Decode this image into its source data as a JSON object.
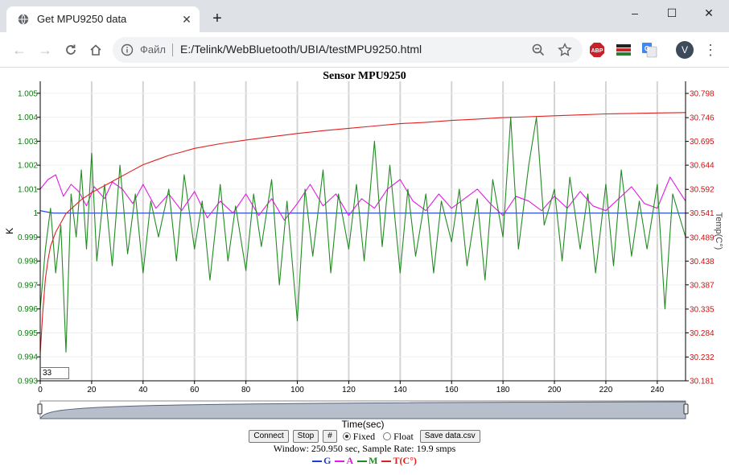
{
  "browser": {
    "tab_title": "Get MPU9250 data",
    "tab_close_icon": "close-icon",
    "new_tab_icon": "plus-icon",
    "window_controls": {
      "minimize": "–",
      "maximize": "☐",
      "close": "✕"
    },
    "scheme_label": "Файл",
    "url": "E:/Telink/WebBluetooth/UBIA/testMPU9250.html",
    "avatar_letter": "V"
  },
  "page": {
    "title": "Sensor MPU9250",
    "window_input_value": "33",
    "controls": {
      "connect": "Connect",
      "stop": "Stop",
      "hash": "#",
      "fixed": "Fixed",
      "float": "Float",
      "save": "Save data.csv"
    },
    "status": "Window: 250.950 sec, Sample Rate: 19.9 smps",
    "legend": [
      {
        "name": "G",
        "color": "#1f3cd6"
      },
      {
        "name": "A",
        "color": "#e21ae2"
      },
      {
        "name": "M",
        "color": "#228b22"
      },
      {
        "name": "T(C°)",
        "color": "#e02020"
      }
    ]
  },
  "chart_data": {
    "type": "line",
    "xlabel": "Time(sec)",
    "ylabel": "K",
    "y2label": "Temp(C°)",
    "xlim": [
      0,
      251
    ],
    "ylim": [
      0.993,
      1.0055
    ],
    "y2lim": [
      30.181,
      30.824
    ],
    "xticks": [
      0,
      20,
      40,
      60,
      80,
      100,
      120,
      140,
      160,
      180,
      200,
      220,
      240
    ],
    "yticks": [
      "0.993",
      "0.994",
      "0.995",
      "0.996",
      "0.997",
      "0.998",
      "0.999",
      "1",
      "1.001",
      "1.002",
      "1.003",
      "1.004",
      "1.005"
    ],
    "y2ticks": [
      "30.181",
      "30.232",
      "30.284",
      "30.335",
      "30.387",
      "30.438",
      "30.489",
      "30.541",
      "30.592",
      "30.644",
      "30.695",
      "30.746",
      "30.798"
    ],
    "grid": true,
    "series": [
      {
        "name": "G",
        "axis": "left",
        "color": "#1f3cd6",
        "x": [
          0,
          5,
          20,
          60,
          100,
          140,
          180,
          220,
          251
        ],
        "y": [
          1.0001,
          1.0,
          1.0,
          1.0,
          1.0,
          1.0,
          1.0,
          1.0,
          1.0
        ]
      },
      {
        "name": "A",
        "axis": "left",
        "color": "#e21ae2",
        "x": [
          0,
          3,
          6,
          9,
          12,
          15,
          18,
          21,
          25,
          28,
          32,
          36,
          40,
          45,
          50,
          55,
          60,
          65,
          70,
          75,
          80,
          85,
          90,
          95,
          100,
          105,
          110,
          115,
          120,
          125,
          130,
          135,
          140,
          145,
          150,
          155,
          160,
          165,
          170,
          175,
          180,
          185,
          190,
          195,
          200,
          205,
          210,
          215,
          220,
          225,
          230,
          235,
          240,
          245,
          251
        ],
        "y": [
          1.001,
          1.0014,
          1.0016,
          1.0007,
          1.0012,
          1.0009,
          1.0003,
          1.0011,
          1.0006,
          1.0013,
          1.001,
          1.0004,
          1.0012,
          1.0002,
          1.0008,
          1.0001,
          1.0009,
          0.9998,
          1.0005,
          1.0,
          1.0008,
          0.9999,
          1.0006,
          0.9997,
          1.0004,
          1.0012,
          1.0003,
          1.0008,
          0.9999,
          1.0006,
          1.0002,
          1.001,
          1.0014,
          1.0005,
          1.0001,
          1.0008,
          1.0002,
          1.0006,
          1.001,
          1.0004,
          0.9999,
          1.0007,
          1.0005,
          1.0001,
          1.0007,
          1.0002,
          1.0009,
          1.0003,
          1.0001,
          1.0006,
          1.0011,
          1.0004,
          1.0002,
          1.0015,
          1.0005
        ]
      },
      {
        "name": "M",
        "axis": "left",
        "color": "#228b22",
        "x": [
          0,
          2,
          4,
          6,
          8,
          10,
          12,
          14,
          16,
          18,
          20,
          22,
          25,
          28,
          31,
          34,
          37,
          40,
          43,
          46,
          50,
          53,
          56,
          60,
          63,
          66,
          70,
          73,
          76,
          80,
          83,
          86,
          90,
          93,
          96,
          100,
          103,
          106,
          110,
          113,
          116,
          120,
          123,
          126,
          130,
          133,
          136,
          140,
          143,
          146,
          150,
          153,
          156,
          160,
          163,
          166,
          170,
          173,
          176,
          180,
          183,
          186,
          190,
          193,
          196,
          200,
          203,
          206,
          210,
          213,
          216,
          220,
          223,
          226,
          230,
          233,
          236,
          240,
          243,
          246,
          251
        ],
        "y": [
          0.996,
          0.9985,
          1.0002,
          0.9975,
          0.9995,
          0.9942,
          1.0008,
          0.999,
          1.0018,
          0.9985,
          1.0025,
          0.998,
          1.0012,
          0.9978,
          1.002,
          0.9983,
          1.0008,
          0.9975,
          1.0005,
          0.999,
          1.001,
          0.998,
          1.0016,
          0.9985,
          1.0005,
          0.9972,
          1.0012,
          0.998,
          1.0003,
          0.9976,
          1.0008,
          0.9986,
          1.0014,
          0.997,
          1.0005,
          0.9955,
          1.001,
          0.9982,
          1.0018,
          0.9975,
          1.0008,
          0.9985,
          1.0012,
          0.998,
          1.003,
          0.9986,
          1.002,
          0.9975,
          1.001,
          0.9982,
          1.0008,
          0.9975,
          1.0005,
          0.9988,
          1.001,
          0.9978,
          1.0006,
          0.9972,
          1.0014,
          0.999,
          1.004,
          0.9985,
          1.002,
          1.004,
          0.9995,
          1.001,
          0.998,
          1.0015,
          0.9985,
          1.0008,
          0.9975,
          1.0012,
          0.9978,
          1.0018,
          0.9982,
          1.0005,
          0.9985,
          1.0012,
          0.996,
          1.0008,
          0.999
        ]
      },
      {
        "name": "T(C°)",
        "axis": "right",
        "color": "#e02020",
        "x": [
          0,
          1,
          2,
          3,
          4,
          6,
          8,
          10,
          13,
          16,
          20,
          25,
          30,
          35,
          40,
          45,
          50,
          55,
          60,
          70,
          80,
          90,
          100,
          110,
          120,
          130,
          140,
          150,
          160,
          170,
          180,
          190,
          200,
          210,
          220,
          230,
          240,
          251
        ],
        "y": [
          30.24,
          30.33,
          30.4,
          30.44,
          30.47,
          30.5,
          30.52,
          30.54,
          30.555,
          30.57,
          30.585,
          30.6,
          30.615,
          30.63,
          30.645,
          30.655,
          30.665,
          30.672,
          30.68,
          30.69,
          30.698,
          30.705,
          30.712,
          30.718,
          30.723,
          30.728,
          30.733,
          30.736,
          30.74,
          30.743,
          30.746,
          30.748,
          30.75,
          30.752,
          30.754,
          30.755,
          30.756,
          30.757
        ]
      }
    ]
  }
}
